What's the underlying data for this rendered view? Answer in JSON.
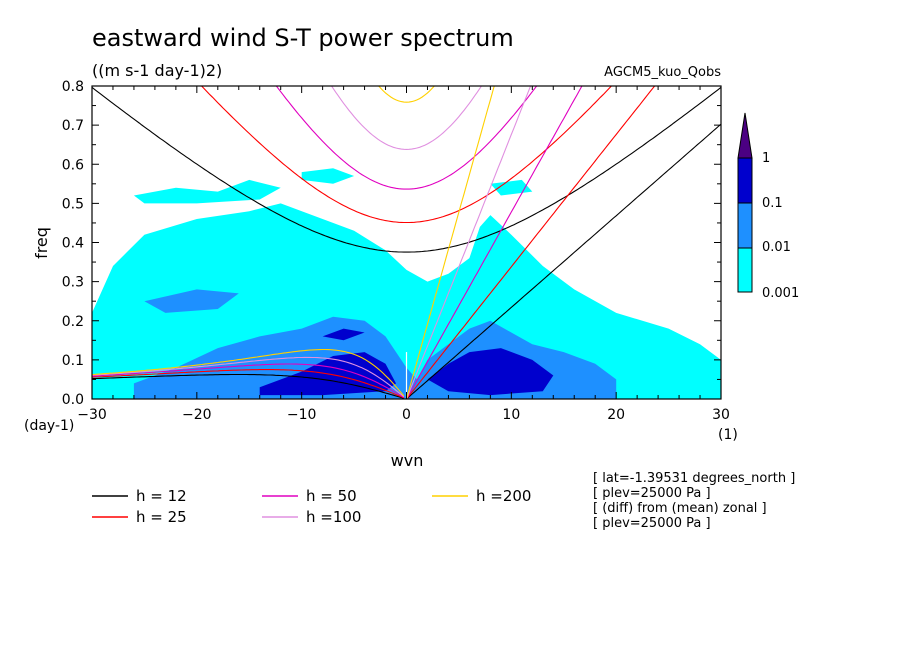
{
  "chart_data": {
    "type": "heatmap",
    "title": "eastward wind S-T power spectrum",
    "subtitle": "((m s-1 day-1)2)",
    "model_label": "AGCM5_kuo_Qobs",
    "xlabel": "wvn",
    "ylabel": "freq",
    "x_unit": "(1)",
    "y_unit": "(day-1)",
    "xlim": [
      -30,
      30
    ],
    "ylim": [
      0,
      0.8
    ],
    "x_ticks": [
      -30,
      -20,
      -10,
      0,
      10,
      20,
      30
    ],
    "y_ticks": [
      0.0,
      0.1,
      0.2,
      0.3,
      0.4,
      0.5,
      0.6,
      0.7,
      0.8
    ],
    "y_tick_labels": [
      "0.0",
      "0.1",
      "0.2",
      "0.3",
      "0.4",
      "0.5",
      "0.6",
      "0.7",
      "0.8"
    ],
    "colorbar": {
      "levels": [
        "0.001",
        "0.01",
        "0.1",
        "1"
      ],
      "colors": [
        "#00ffff",
        "#1e90ff",
        "#0000cd",
        "#4b0082"
      ]
    },
    "dispersion_curves": [
      {
        "label": "h = 12",
        "h": 12,
        "color": "#000000"
      },
      {
        "label": "h = 25",
        "h": 25,
        "color": "#ff0000"
      },
      {
        "label": "h = 50",
        "h": 50,
        "color": "#e000c0"
      },
      {
        "label": "h =100",
        "h": 100,
        "color": "#e090e0"
      },
      {
        "label": "h =200",
        "h": 200,
        "color": "#ffd000"
      }
    ],
    "info_lines": [
      "[ lat=-1.39531 degrees_north ]",
      "[ plev=25000 Pa ]",
      "[ (diff) from (mean) zonal ]",
      "[ plev=25000 Pa ]"
    ],
    "power_regions": [
      {
        "level": "0.001",
        "polygon": [
          [
            -30,
            0
          ],
          [
            -30,
            0.22
          ],
          [
            -28,
            0.34
          ],
          [
            -25,
            0.42
          ],
          [
            -20,
            0.46
          ],
          [
            -15,
            0.48
          ],
          [
            -12,
            0.5
          ],
          [
            -8,
            0.46
          ],
          [
            -5,
            0.43
          ],
          [
            -2,
            0.38
          ],
          [
            0,
            0.33
          ],
          [
            2,
            0.3
          ],
          [
            4,
            0.32
          ],
          [
            6,
            0.36
          ],
          [
            7,
            0.44
          ],
          [
            8,
            0.47
          ],
          [
            10,
            0.42
          ],
          [
            13,
            0.34
          ],
          [
            16,
            0.28
          ],
          [
            20,
            0.22
          ],
          [
            25,
            0.18
          ],
          [
            28,
            0.14
          ],
          [
            30,
            0.1
          ],
          [
            30,
            0
          ]
        ]
      },
      {
        "level": "0.001",
        "polygon": [
          [
            -26,
            0.52
          ],
          [
            -22,
            0.54
          ],
          [
            -18,
            0.53
          ],
          [
            -15,
            0.56
          ],
          [
            -12,
            0.54
          ],
          [
            -14,
            0.51
          ],
          [
            -20,
            0.5
          ],
          [
            -25,
            0.5
          ]
        ]
      },
      {
        "level": "0.001",
        "polygon": [
          [
            -10,
            0.58
          ],
          [
            -7,
            0.59
          ],
          [
            -5,
            0.57
          ],
          [
            -7,
            0.55
          ],
          [
            -10,
            0.56
          ]
        ]
      },
      {
        "level": "0.001",
        "polygon": [
          [
            8,
            0.55
          ],
          [
            11,
            0.56
          ],
          [
            12,
            0.53
          ],
          [
            9,
            0.52
          ]
        ]
      },
      {
        "level": "0.01",
        "polygon": [
          [
            -26,
            0.04
          ],
          [
            -22,
            0.08
          ],
          [
            -18,
            0.13
          ],
          [
            -14,
            0.16
          ],
          [
            -10,
            0.18
          ],
          [
            -7,
            0.21
          ],
          [
            -4,
            0.2
          ],
          [
            -2,
            0.16
          ],
          [
            0,
            0.08
          ],
          [
            1,
            0.05
          ],
          [
            2,
            0.1
          ],
          [
            4,
            0.14
          ],
          [
            6,
            0.18
          ],
          [
            8,
            0.2
          ],
          [
            10,
            0.17
          ],
          [
            12,
            0.14
          ],
          [
            15,
            0.12
          ],
          [
            18,
            0.09
          ],
          [
            20,
            0.05
          ],
          [
            20,
            0
          ],
          [
            -26,
            0
          ]
        ]
      },
      {
        "level": "0.01",
        "polygon": [
          [
            -25,
            0.25
          ],
          [
            -20,
            0.28
          ],
          [
            -16,
            0.27
          ],
          [
            -18,
            0.23
          ],
          [
            -23,
            0.22
          ]
        ]
      },
      {
        "level": "0.1",
        "polygon": [
          [
            -14,
            0.03
          ],
          [
            -10,
            0.07
          ],
          [
            -7,
            0.11
          ],
          [
            -4,
            0.12
          ],
          [
            -2,
            0.09
          ],
          [
            -1,
            0.04
          ],
          [
            -2,
            0.02
          ],
          [
            -8,
            0.01
          ],
          [
            -14,
            0.01
          ]
        ]
      },
      {
        "level": "0.1",
        "polygon": [
          [
            2,
            0.05
          ],
          [
            4,
            0.09
          ],
          [
            6,
            0.12
          ],
          [
            9,
            0.13
          ],
          [
            12,
            0.1
          ],
          [
            14,
            0.06
          ],
          [
            13,
            0.02
          ],
          [
            8,
            0.01
          ],
          [
            4,
            0.02
          ]
        ]
      },
      {
        "level": "0.1",
        "polygon": [
          [
            -8,
            0.16
          ],
          [
            -6,
            0.18
          ],
          [
            -4,
            0.17
          ],
          [
            -6,
            0.15
          ]
        ]
      }
    ]
  }
}
